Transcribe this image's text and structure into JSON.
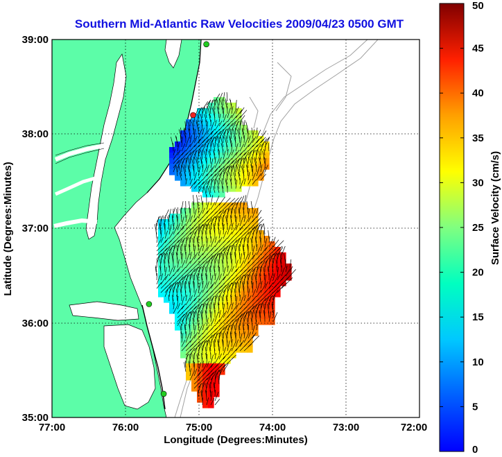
{
  "title": "Southern Mid-Atlantic Raw Velocities 2009/04/23 0500 GMT",
  "chart_data": {
    "type": "heatmap",
    "title": "Southern Mid-Atlantic Raw Velocities 2009/04/23 0500 GMT",
    "xlabel": "Longitude (Degrees:Minutes)",
    "ylabel": "Latitude (Degrees:Minutes)",
    "x_ticks": [
      "77:00",
      "76:00",
      "75:00",
      "74:00",
      "73:00",
      "72:00"
    ],
    "y_ticks": [
      "39:00",
      "38:00",
      "37:00",
      "36:00",
      "35:00"
    ],
    "xlim": [
      -77,
      -72
    ],
    "ylim": [
      35,
      39
    ],
    "grid": true,
    "colorbar": {
      "label": "Surface Velocity (cm/s)",
      "ticks": [
        "50",
        "45",
        "40",
        "35",
        "30",
        "25",
        "20",
        "15",
        "10",
        "5",
        "0"
      ],
      "range": [
        0,
        50
      ],
      "colormap": "jet"
    },
    "stations": [
      {
        "lon": -74.9,
        "lat": 38.95,
        "color": "#22cc22"
      },
      {
        "lon": -75.08,
        "lat": 38.2,
        "color": "#ee2222"
      },
      {
        "lon": -75.68,
        "lat": 36.2,
        "color": "#22cc22"
      },
      {
        "lon": -75.48,
        "lat": 35.25,
        "color": "#22cc22"
      }
    ]
  },
  "colors": {
    "land": "#5cfda8",
    "water": "#ffffff",
    "coast": "#000000",
    "bathymetry": "#a0a0a0"
  }
}
